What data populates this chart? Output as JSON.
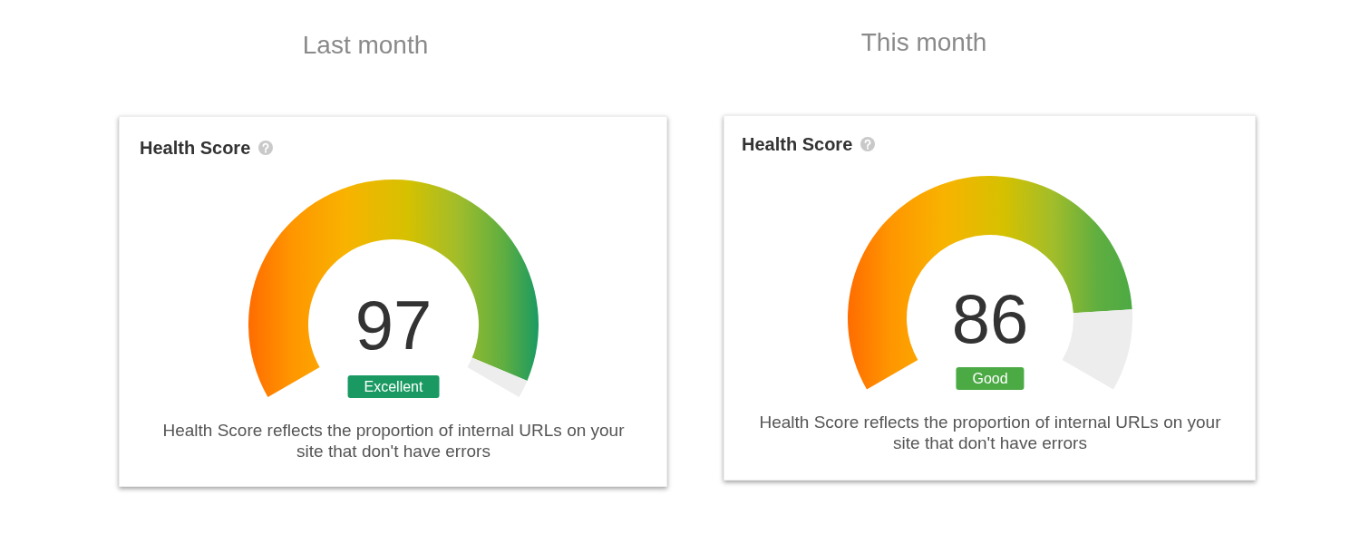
{
  "chart_data": [
    {
      "type": "donut",
      "title": "Last month",
      "subtitle": "Health Score",
      "categories": [
        null,
        null
      ],
      "values": [
        97,
        3
      ],
      "colors": [
        "#1a9a62",
        "#ededed"
      ],
      "annotations": [
        "97",
        "Excellent",
        "Health Score reflects the proportion of internal URLs on your site that don't have errors"
      ]
    },
    {
      "type": "donut",
      "title": "This month",
      "subtitle": "Health Score",
      "categories": [
        null,
        null
      ],
      "values": [
        86,
        14
      ],
      "colors": [
        "#4caa44",
        "#ededed"
      ],
      "annotations": [
        "86",
        "Good",
        "Health Score reflects the proportion of internal URLs on your site that don't have errors"
      ]
    }
  ]
}
